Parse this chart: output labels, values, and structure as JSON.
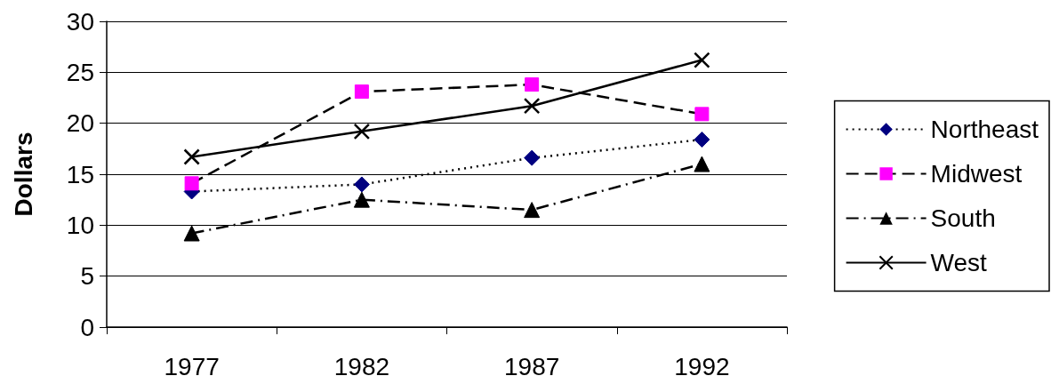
{
  "chart_data": {
    "type": "line",
    "ylabel": "Dollars",
    "categories": [
      "1977",
      "1982",
      "1987",
      "1992"
    ],
    "ylim": [
      0,
      30
    ],
    "yticks": [
      0,
      5,
      10,
      15,
      20,
      25,
      30
    ],
    "grid": "y",
    "legend": "right",
    "series": [
      {
        "name": "Northeast",
        "color": "#000080",
        "marker": "diamond",
        "line_style": "dotted",
        "values": [
          13.3,
          14.0,
          16.6,
          18.4
        ]
      },
      {
        "name": "Midwest",
        "color": "#ff00ff",
        "marker": "square",
        "line_style": "dashed",
        "values": [
          14.1,
          23.1,
          23.8,
          20.9
        ]
      },
      {
        "name": "South",
        "color": "#000000",
        "marker": "triangle",
        "line_style": "dashdot",
        "values": [
          9.2,
          12.5,
          11.5,
          16.0
        ]
      },
      {
        "name": "West",
        "color": "#000000",
        "marker": "cross",
        "line_style": "solid",
        "values": [
          16.7,
          19.2,
          21.7,
          26.2
        ]
      }
    ]
  }
}
